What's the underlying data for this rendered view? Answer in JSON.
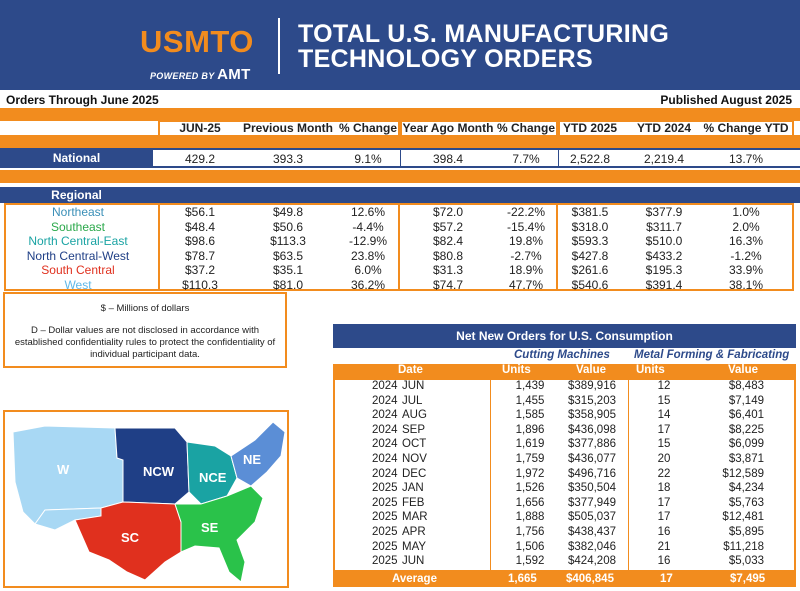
{
  "header": {
    "logo_text": "USMTO",
    "powered_by": "POWERED BY",
    "powered_brand": "AMT",
    "title_line1": "TOTAL U.S. MANUFACTURING",
    "title_line2": "TECHNOLOGY ORDERS"
  },
  "orders_through": "Orders Through June 2025",
  "published": "Published August 2025",
  "columns": [
    "JUN-25",
    "Previous Month",
    "% Change",
    "Year Ago Month",
    "% Change",
    "YTD 2025",
    "YTD 2024",
    "% Change YTD"
  ],
  "national": {
    "label": "National",
    "values": [
      "429.2",
      "393.3",
      "9.1%",
      "398.4",
      "7.7%",
      "2,522.8",
      "2,219.4",
      "13.7%"
    ]
  },
  "regional": {
    "label": "Regional",
    "rows": [
      {
        "name": "Northeast",
        "color": "#3a8fb7",
        "values": [
          "$56.1",
          "$49.8",
          "12.6%",
          "$72.0",
          "-22.2%",
          "$381.5",
          "$377.9",
          "1.0%"
        ]
      },
      {
        "name": "Southeast",
        "color": "#2aa84a",
        "values": [
          "$48.4",
          "$50.6",
          "-4.4%",
          "$57.2",
          "-15.4%",
          "$318.0",
          "$311.7",
          "2.0%"
        ]
      },
      {
        "name": "North Central-East",
        "color": "#1aa3a3",
        "values": [
          "$98.6",
          "$113.3",
          "-12.9%",
          "$82.4",
          "19.8%",
          "$593.3",
          "$510.0",
          "16.3%"
        ]
      },
      {
        "name": "North Central-West",
        "color": "#1f3f86",
        "values": [
          "$78.7",
          "$63.5",
          "23.8%",
          "$80.8",
          "-2.7%",
          "$427.8",
          "$433.2",
          "-1.2%"
        ]
      },
      {
        "name": "South Central",
        "color": "#e0301e",
        "values": [
          "$37.2",
          "$35.1",
          "6.0%",
          "$31.3",
          "18.9%",
          "$261.6",
          "$195.3",
          "33.9%"
        ]
      },
      {
        "name": "West",
        "color": "#5fb8e8",
        "values": [
          "$110.3",
          "$81.0",
          "36.2%",
          "$74.7",
          "47.7%",
          "$540.6",
          "$391.4",
          "38.1%"
        ]
      }
    ]
  },
  "notes": {
    "dollars": "$ – Millions of dollars",
    "disclosure": "D – Dollar values are not disclosed in accordance with established confidentiality rules to protect the confidentiality of individual participant data."
  },
  "map": {
    "labels": [
      "W",
      "NCW",
      "NCE",
      "NE",
      "SC",
      "SE"
    ]
  },
  "net_new": {
    "title": "Net New Orders for U.S. Consumption",
    "group1": "Cutting Machines",
    "group2": "Metal Forming & Fabricating",
    "col_date": "Date",
    "col_units": "Units",
    "col_value": "Value",
    "rows": [
      {
        "year": "2024",
        "month": "JUN",
        "cm_units": "1,439",
        "cm_value": "$389,916",
        "mf_units": "12",
        "mf_value": "$8,483"
      },
      {
        "year": "2024",
        "month": "JUL",
        "cm_units": "1,455",
        "cm_value": "$315,203",
        "mf_units": "15",
        "mf_value": "$7,149"
      },
      {
        "year": "2024",
        "month": "AUG",
        "cm_units": "1,585",
        "cm_value": "$358,905",
        "mf_units": "14",
        "mf_value": "$6,401"
      },
      {
        "year": "2024",
        "month": "SEP",
        "cm_units": "1,896",
        "cm_value": "$436,098",
        "mf_units": "17",
        "mf_value": "$8,225"
      },
      {
        "year": "2024",
        "month": "OCT",
        "cm_units": "1,619",
        "cm_value": "$377,886",
        "mf_units": "15",
        "mf_value": "$6,099"
      },
      {
        "year": "2024",
        "month": "NOV",
        "cm_units": "1,759",
        "cm_value": "$436,077",
        "mf_units": "20",
        "mf_value": "$3,871"
      },
      {
        "year": "2024",
        "month": "DEC",
        "cm_units": "1,972",
        "cm_value": "$496,716",
        "mf_units": "22",
        "mf_value": "$12,589"
      },
      {
        "year": "2025",
        "month": "JAN",
        "cm_units": "1,526",
        "cm_value": "$350,504",
        "mf_units": "18",
        "mf_value": "$4,234"
      },
      {
        "year": "2025",
        "month": "FEB",
        "cm_units": "1,656",
        "cm_value": "$377,949",
        "mf_units": "17",
        "mf_value": "$5,763"
      },
      {
        "year": "2025",
        "month": "MAR",
        "cm_units": "1,888",
        "cm_value": "$505,037",
        "mf_units": "17",
        "mf_value": "$12,481"
      },
      {
        "year": "2025",
        "month": "APR",
        "cm_units": "1,756",
        "cm_value": "$438,437",
        "mf_units": "16",
        "mf_value": "$5,895"
      },
      {
        "year": "2025",
        "month": "MAY",
        "cm_units": "1,506",
        "cm_value": "$382,046",
        "mf_units": "21",
        "mf_value": "$11,218"
      },
      {
        "year": "2025",
        "month": "JUN",
        "cm_units": "1,592",
        "cm_value": "$424,208",
        "mf_units": "16",
        "mf_value": "$5,033"
      }
    ],
    "average": {
      "label": "Average",
      "cm_units": "1,665",
      "cm_value": "$406,845",
      "mf_units": "17",
      "mf_value": "$7,495"
    }
  },
  "colors": {
    "navy": "#2d4a8a",
    "orange": "#f28c1e"
  }
}
